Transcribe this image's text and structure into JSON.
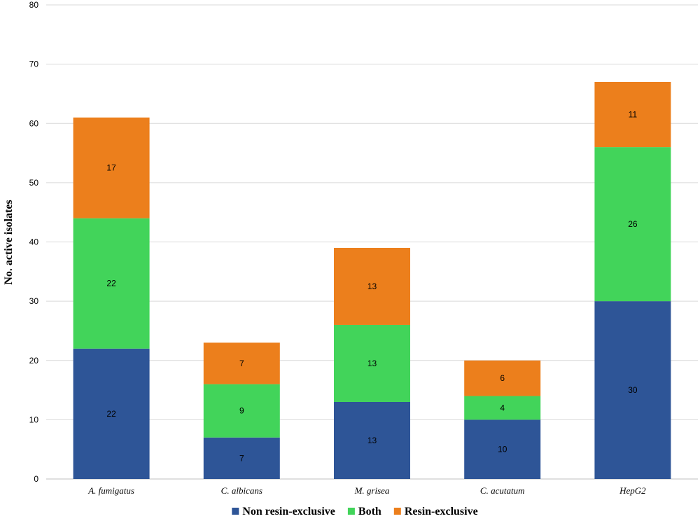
{
  "chart_data": {
    "type": "bar",
    "stacked": true,
    "title": "",
    "xlabel": "",
    "ylabel": "No. active isolates",
    "ylim": [
      0,
      80
    ],
    "yticks": [
      0,
      10,
      20,
      30,
      40,
      50,
      60,
      70,
      80
    ],
    "grid": true,
    "legend_position": "bottom",
    "categories": [
      "A. fumigatus",
      "C. albicans",
      "M. grisea",
      "C. acutatum",
      "HepG2"
    ],
    "series": [
      {
        "name": "Non resin-exclusive",
        "color": "#2e5597",
        "values": [
          22,
          7,
          13,
          10,
          30
        ]
      },
      {
        "name": "Both",
        "color": "#42d45a",
        "values": [
          22,
          9,
          13,
          4,
          26
        ]
      },
      {
        "name": "Resin-exclusive",
        "color": "#ec7f1c",
        "values": [
          17,
          7,
          13,
          6,
          11
        ]
      }
    ]
  }
}
